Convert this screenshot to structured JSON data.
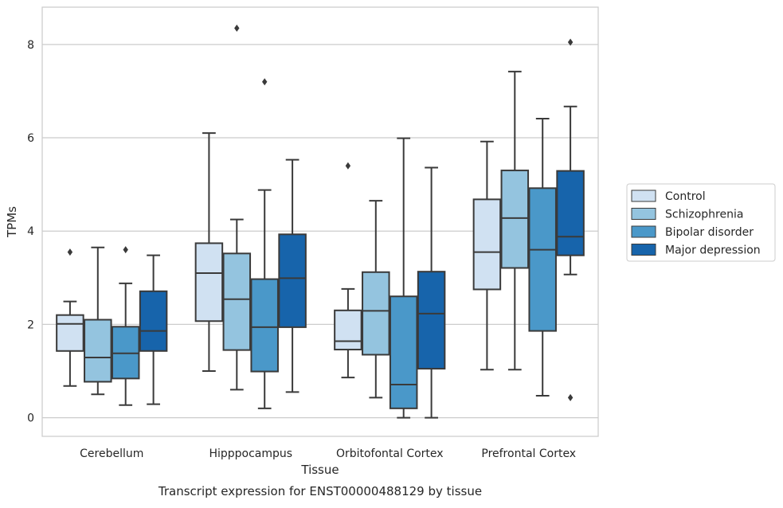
{
  "caption": "Transcript expression for ENST00000488129 by tissue",
  "chart_data": {
    "type": "box",
    "title": "",
    "xlabel": "Tissue",
    "ylabel": "TPMs",
    "ylim": [
      -0.4,
      8.8
    ],
    "yticks": [
      0,
      2,
      4,
      6,
      8
    ],
    "grid": "horizontal",
    "legend_position": "right",
    "categories": [
      "Cerebellum",
      "Hipppocampus",
      "Orbitofontal Cortex",
      "Prefrontal Cortex"
    ],
    "series": [
      {
        "name": "Control",
        "color": "#d0e1f2",
        "boxes": [
          {
            "whisker_low": 0.68,
            "q1": 1.43,
            "median": 2.01,
            "q3": 2.2,
            "whisker_high": 2.49,
            "outliers": [
              3.55
            ]
          },
          {
            "whisker_low": 1.0,
            "q1": 2.07,
            "median": 3.1,
            "q3": 3.74,
            "whisker_high": 6.1,
            "outliers": []
          },
          {
            "whisker_low": 0.86,
            "q1": 1.46,
            "median": 1.64,
            "q3": 2.3,
            "whisker_high": 2.76,
            "outliers": [
              5.4
            ]
          },
          {
            "whisker_low": 1.03,
            "q1": 2.75,
            "median": 3.55,
            "q3": 4.68,
            "whisker_high": 5.92,
            "outliers": []
          }
        ]
      },
      {
        "name": "Schizophrenia",
        "color": "#94c4df",
        "boxes": [
          {
            "whisker_low": 0.5,
            "q1": 0.77,
            "median": 1.29,
            "q3": 2.1,
            "whisker_high": 3.65,
            "outliers": []
          },
          {
            "whisker_low": 0.6,
            "q1": 1.45,
            "median": 2.54,
            "q3": 3.52,
            "whisker_high": 4.25,
            "outliers": [
              8.35
            ]
          },
          {
            "whisker_low": 0.43,
            "q1": 1.35,
            "median": 2.29,
            "q3": 3.12,
            "whisker_high": 4.65,
            "outliers": []
          },
          {
            "whisker_low": 1.03,
            "q1": 3.21,
            "median": 4.28,
            "q3": 5.3,
            "whisker_high": 7.42,
            "outliers": []
          }
        ]
      },
      {
        "name": "Bipolar disorder",
        "color": "#4a98c9",
        "boxes": [
          {
            "whisker_low": 0.27,
            "q1": 0.84,
            "median": 1.38,
            "q3": 1.95,
            "whisker_high": 2.88,
            "outliers": [
              3.6
            ]
          },
          {
            "whisker_low": 0.2,
            "q1": 0.99,
            "median": 1.94,
            "q3": 2.97,
            "whisker_high": 4.88,
            "outliers": [
              7.2
            ]
          },
          {
            "whisker_low": 0.0,
            "q1": 0.2,
            "median": 0.71,
            "q3": 2.6,
            "whisker_high": 5.99,
            "outliers": []
          },
          {
            "whisker_low": 0.47,
            "q1": 1.86,
            "median": 3.6,
            "q3": 4.92,
            "whisker_high": 6.41,
            "outliers": []
          }
        ]
      },
      {
        "name": "Major depression",
        "color": "#1764ab",
        "boxes": [
          {
            "whisker_low": 0.29,
            "q1": 1.43,
            "median": 1.86,
            "q3": 2.71,
            "whisker_high": 3.48,
            "outliers": []
          },
          {
            "whisker_low": 0.55,
            "q1": 1.94,
            "median": 2.99,
            "q3": 3.93,
            "whisker_high": 5.53,
            "outliers": []
          },
          {
            "whisker_low": 0.0,
            "q1": 1.05,
            "median": 2.23,
            "q3": 3.13,
            "whisker_high": 5.36,
            "outliers": []
          },
          {
            "whisker_low": 3.07,
            "q1": 3.48,
            "median": 3.88,
            "q3": 5.29,
            "whisker_high": 6.67,
            "outliers": [
              8.05,
              0.43
            ]
          }
        ]
      }
    ]
  }
}
